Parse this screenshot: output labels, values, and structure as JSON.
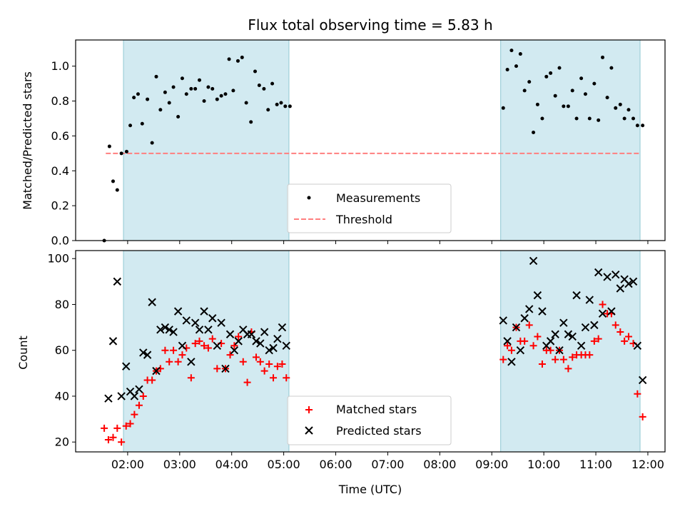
{
  "chart_data": [
    {
      "type": "scatter",
      "title": "Flux total observing time = 5.83 h",
      "xlabel": "",
      "ylabel": "Matched/Predicted stars",
      "ylim": [
        0,
        1.15
      ],
      "yticks": [
        "0.0",
        "0.2",
        "0.4",
        "0.6",
        "0.8",
        "1.0"
      ],
      "x_unit": "hours UTC",
      "xlim": [
        1.0,
        12.33
      ],
      "shaded_intervals": [
        [
          1.92,
          5.1
        ],
        [
          9.17,
          11.85
        ]
      ],
      "shade_color": "#add8e6",
      "legend_position": "lower-center",
      "threshold": {
        "name": "Threshold",
        "value": 0.5,
        "x_range": [
          1.58,
          11.85
        ],
        "color": "#ff7f7f",
        "style": "dashed"
      },
      "series": [
        {
          "name": "Measurements",
          "color": "#000000",
          "marker": "dot",
          "points": [
            [
              1.55,
              0.0
            ],
            [
              1.65,
              0.54
            ],
            [
              1.72,
              0.34
            ],
            [
              1.8,
              0.29
            ],
            [
              1.88,
              0.5
            ],
            [
              1.98,
              0.51
            ],
            [
              2.05,
              0.66
            ],
            [
              2.12,
              0.82
            ],
            [
              2.2,
              0.84
            ],
            [
              2.28,
              0.67
            ],
            [
              2.38,
              0.81
            ],
            [
              2.47,
              0.56
            ],
            [
              2.55,
              0.94
            ],
            [
              2.63,
              0.75
            ],
            [
              2.72,
              0.85
            ],
            [
              2.8,
              0.79
            ],
            [
              2.88,
              0.88
            ],
            [
              2.97,
              0.71
            ],
            [
              3.05,
              0.93
            ],
            [
              3.13,
              0.84
            ],
            [
              3.22,
              0.87
            ],
            [
              3.3,
              0.87
            ],
            [
              3.38,
              0.92
            ],
            [
              3.47,
              0.8
            ],
            [
              3.55,
              0.88
            ],
            [
              3.63,
              0.87
            ],
            [
              3.72,
              0.81
            ],
            [
              3.8,
              0.83
            ],
            [
              3.88,
              0.84
            ],
            [
              3.95,
              1.04
            ],
            [
              4.03,
              0.86
            ],
            [
              4.12,
              1.03
            ],
            [
              4.2,
              1.05
            ],
            [
              4.28,
              0.79
            ],
            [
              4.37,
              0.68
            ],
            [
              4.45,
              0.97
            ],
            [
              4.53,
              0.89
            ],
            [
              4.62,
              0.87
            ],
            [
              4.7,
              0.75
            ],
            [
              4.78,
              0.9
            ],
            [
              4.87,
              0.78
            ],
            [
              4.95,
              0.79
            ],
            [
              5.03,
              0.77
            ],
            [
              5.12,
              0.77
            ],
            [
              9.22,
              0.76
            ],
            [
              9.3,
              0.98
            ],
            [
              9.38,
              1.09
            ],
            [
              9.47,
              1.0
            ],
            [
              9.55,
              1.07
            ],
            [
              9.63,
              0.86
            ],
            [
              9.72,
              0.91
            ],
            [
              9.8,
              0.62
            ],
            [
              9.88,
              0.78
            ],
            [
              9.97,
              0.7
            ],
            [
              10.05,
              0.94
            ],
            [
              10.13,
              0.96
            ],
            [
              10.22,
              0.83
            ],
            [
              10.3,
              0.99
            ],
            [
              10.38,
              0.77
            ],
            [
              10.47,
              0.77
            ],
            [
              10.55,
              0.86
            ],
            [
              10.63,
              0.7
            ],
            [
              10.72,
              0.93
            ],
            [
              10.8,
              0.84
            ],
            [
              10.88,
              0.7
            ],
            [
              10.97,
              0.9
            ],
            [
              11.05,
              0.69
            ],
            [
              11.13,
              1.05
            ],
            [
              11.22,
              0.82
            ],
            [
              11.3,
              0.99
            ],
            [
              11.38,
              0.76
            ],
            [
              11.47,
              0.78
            ],
            [
              11.55,
              0.7
            ],
            [
              11.63,
              0.75
            ],
            [
              11.72,
              0.7
            ],
            [
              11.8,
              0.66
            ],
            [
              11.9,
              0.66
            ]
          ]
        }
      ]
    },
    {
      "type": "scatter",
      "title": "",
      "xlabel": "Time (UTC)",
      "ylabel": "Count",
      "ylim": [
        15.7,
        103.5
      ],
      "yticks": [
        "20",
        "40",
        "60",
        "80",
        "100"
      ],
      "x_unit": "hours UTC",
      "xlim": [
        1.0,
        12.33
      ],
      "xticks": [
        "02:00",
        "03:00",
        "04:00",
        "05:00",
        "06:00",
        "07:00",
        "08:00",
        "09:00",
        "10:00",
        "11:00",
        "12:00"
      ],
      "shaded_intervals": [
        [
          1.92,
          5.1
        ],
        [
          9.17,
          11.85
        ]
      ],
      "shade_color": "#add8e6",
      "legend_position": "lower-center",
      "series": [
        {
          "name": "Matched stars",
          "color": "#ff0000",
          "marker": "plus",
          "points": [
            [
              1.55,
              26
            ],
            [
              1.63,
              21
            ],
            [
              1.72,
              22
            ],
            [
              1.8,
              26
            ],
            [
              1.88,
              20
            ],
            [
              1.97,
              27
            ],
            [
              2.05,
              28
            ],
            [
              2.13,
              32
            ],
            [
              2.22,
              36
            ],
            [
              2.3,
              40
            ],
            [
              2.38,
              47
            ],
            [
              2.47,
              47
            ],
            [
              2.55,
              51
            ],
            [
              2.63,
              52
            ],
            [
              2.72,
              60
            ],
            [
              2.8,
              55
            ],
            [
              2.88,
              60
            ],
            [
              2.97,
              55
            ],
            [
              3.05,
              58
            ],
            [
              3.13,
              61
            ],
            [
              3.22,
              48
            ],
            [
              3.3,
              63
            ],
            [
              3.38,
              64
            ],
            [
              3.47,
              62
            ],
            [
              3.55,
              61
            ],
            [
              3.63,
              65
            ],
            [
              3.72,
              52
            ],
            [
              3.8,
              63
            ],
            [
              3.88,
              52
            ],
            [
              3.97,
              58
            ],
            [
              4.05,
              62
            ],
            [
              4.13,
              66
            ],
            [
              4.22,
              55
            ],
            [
              4.3,
              46
            ],
            [
              4.38,
              68
            ],
            [
              4.47,
              57
            ],
            [
              4.55,
              55
            ],
            [
              4.63,
              51
            ],
            [
              4.72,
              54
            ],
            [
              4.8,
              48
            ],
            [
              4.88,
              53
            ],
            [
              4.97,
              54
            ],
            [
              5.05,
              48
            ],
            [
              9.22,
              56
            ],
            [
              9.3,
              62
            ],
            [
              9.38,
              60
            ],
            [
              9.47,
              70
            ],
            [
              9.55,
              64
            ],
            [
              9.63,
              64
            ],
            [
              9.72,
              71
            ],
            [
              9.8,
              62
            ],
            [
              9.88,
              66
            ],
            [
              9.97,
              54
            ],
            [
              10.05,
              60
            ],
            [
              10.13,
              60
            ],
            [
              10.22,
              56
            ],
            [
              10.3,
              60
            ],
            [
              10.38,
              56
            ],
            [
              10.47,
              52
            ],
            [
              10.55,
              57
            ],
            [
              10.63,
              58
            ],
            [
              10.72,
              58
            ],
            [
              10.8,
              58
            ],
            [
              10.88,
              58
            ],
            [
              10.97,
              64
            ],
            [
              11.05,
              65
            ],
            [
              11.13,
              80
            ],
            [
              11.22,
              76
            ],
            [
              11.3,
              76
            ],
            [
              11.38,
              71
            ],
            [
              11.47,
              68
            ],
            [
              11.55,
              64
            ],
            [
              11.63,
              66
            ],
            [
              11.72,
              63
            ],
            [
              11.8,
              41
            ],
            [
              11.9,
              31
            ]
          ]
        },
        {
          "name": "Predicted stars",
          "color": "#000000",
          "marker": "x",
          "points": [
            [
              1.63,
              39
            ],
            [
              1.72,
              64
            ],
            [
              1.8,
              90
            ],
            [
              1.88,
              40
            ],
            [
              1.97,
              53
            ],
            [
              2.05,
              42
            ],
            [
              2.13,
              40
            ],
            [
              2.22,
              43
            ],
            [
              2.3,
              59
            ],
            [
              2.38,
              58
            ],
            [
              2.47,
              81
            ],
            [
              2.55,
              51
            ],
            [
              2.63,
              69
            ],
            [
              2.72,
              70
            ],
            [
              2.8,
              69
            ],
            [
              2.88,
              68
            ],
            [
              2.97,
              77
            ],
            [
              3.05,
              62
            ],
            [
              3.13,
              73
            ],
            [
              3.22,
              55
            ],
            [
              3.3,
              72
            ],
            [
              3.38,
              69
            ],
            [
              3.47,
              77
            ],
            [
              3.55,
              69
            ],
            [
              3.63,
              74
            ],
            [
              3.72,
              62
            ],
            [
              3.8,
              72
            ],
            [
              3.88,
              52
            ],
            [
              3.97,
              67
            ],
            [
              4.05,
              60
            ],
            [
              4.13,
              64
            ],
            [
              4.22,
              69
            ],
            [
              4.3,
              67
            ],
            [
              4.38,
              67
            ],
            [
              4.47,
              64
            ],
            [
              4.55,
              63
            ],
            [
              4.63,
              68
            ],
            [
              4.72,
              60
            ],
            [
              4.8,
              61
            ],
            [
              4.88,
              65
            ],
            [
              4.97,
              70
            ],
            [
              5.05,
              62
            ],
            [
              9.22,
              73
            ],
            [
              9.3,
              64
            ],
            [
              9.38,
              55
            ],
            [
              9.47,
              70
            ],
            [
              9.55,
              60
            ],
            [
              9.63,
              74
            ],
            [
              9.72,
              78
            ],
            [
              9.8,
              99
            ],
            [
              9.88,
              84
            ],
            [
              9.97,
              77
            ],
            [
              10.05,
              62
            ],
            [
              10.13,
              64
            ],
            [
              10.22,
              67
            ],
            [
              10.3,
              60
            ],
            [
              10.38,
              72
            ],
            [
              10.47,
              67
            ],
            [
              10.55,
              66
            ],
            [
              10.63,
              84
            ],
            [
              10.72,
              62
            ],
            [
              10.8,
              70
            ],
            [
              10.88,
              82
            ],
            [
              10.97,
              71
            ],
            [
              11.05,
              94
            ],
            [
              11.13,
              76
            ],
            [
              11.22,
              92
            ],
            [
              11.3,
              77
            ],
            [
              11.38,
              93
            ],
            [
              11.47,
              87
            ],
            [
              11.55,
              91
            ],
            [
              11.63,
              89
            ],
            [
              11.72,
              90
            ],
            [
              11.8,
              62
            ],
            [
              11.9,
              47
            ]
          ]
        }
      ]
    }
  ]
}
